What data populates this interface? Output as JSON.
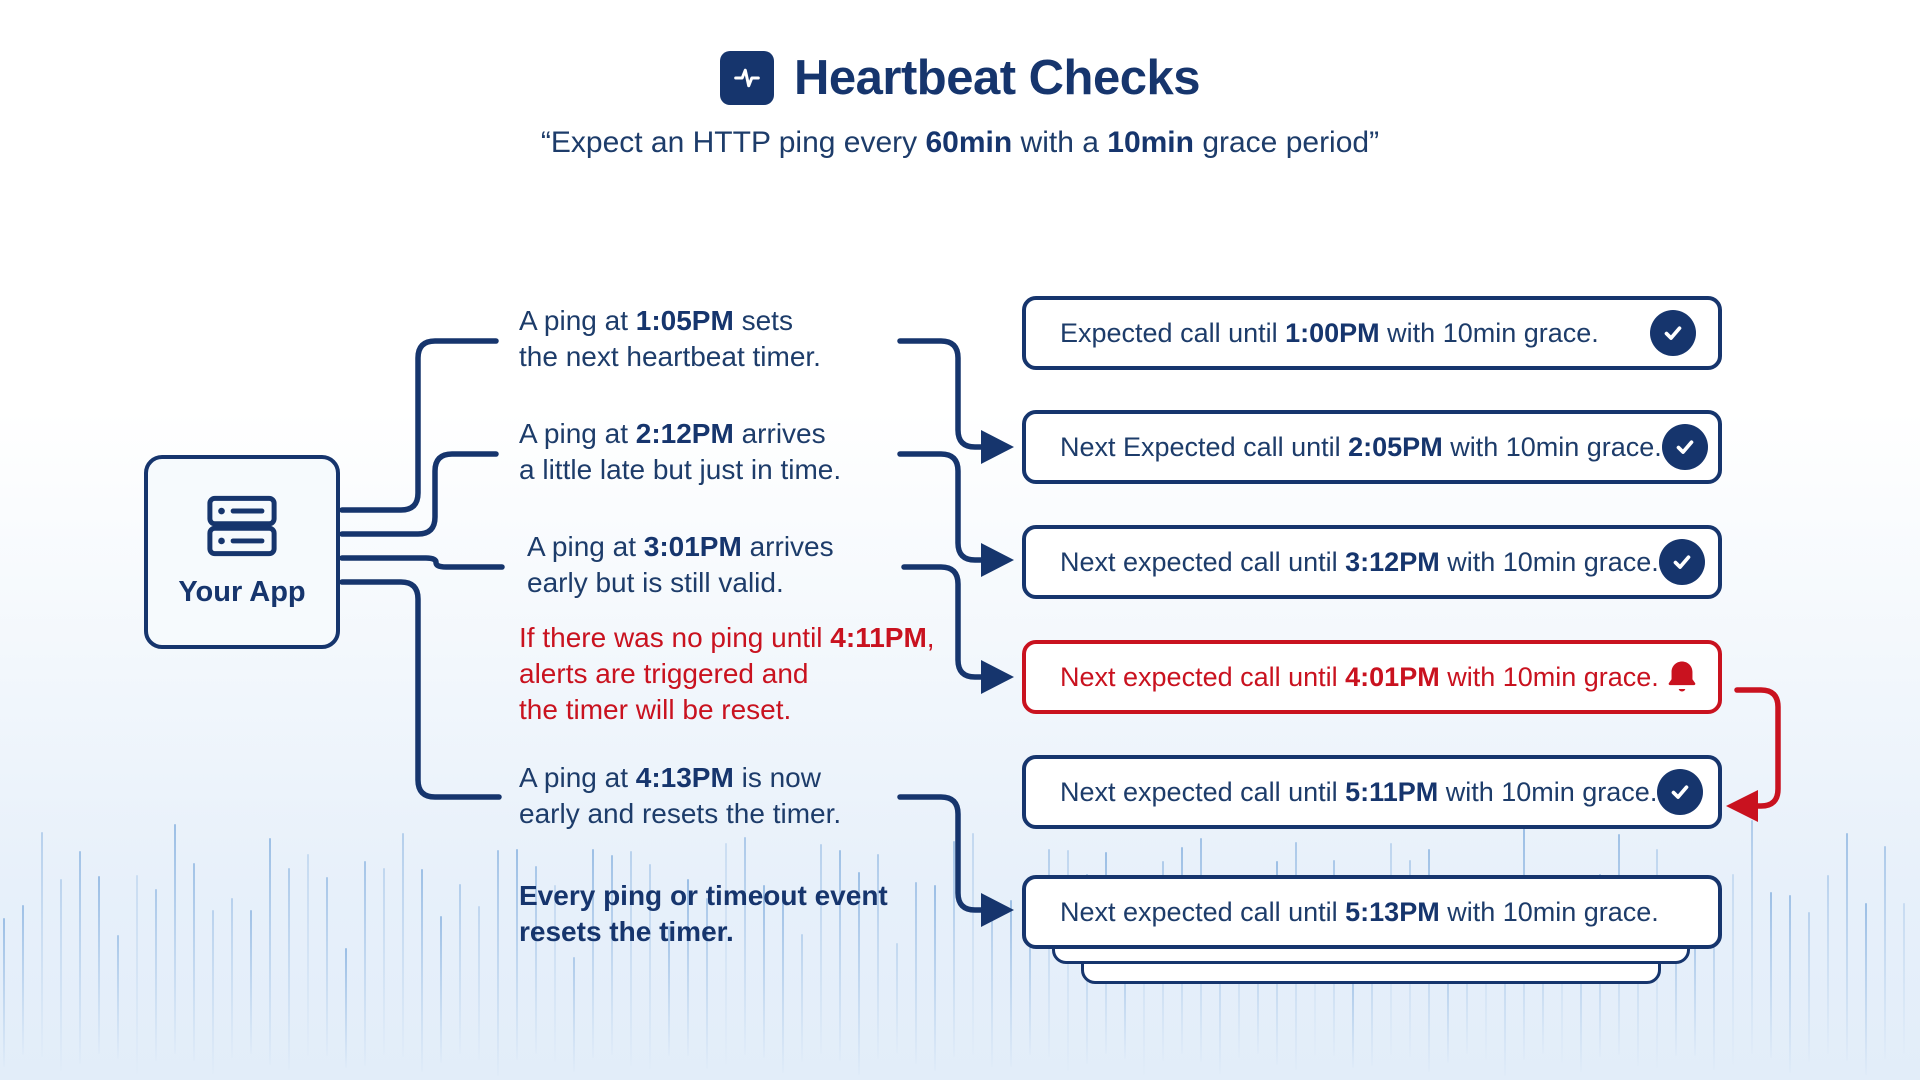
{
  "colors": {
    "navy": "#16356d",
    "navy_soft": "#1d3c6a",
    "red": "#c9121f",
    "app_box_bg": "#f6fafd",
    "wave": "#5f97d4"
  },
  "header": {
    "title": "Heartbeat Checks",
    "subtitle": [
      {
        "t": "“Expect an HTTP ping every "
      },
      {
        "t": "60min",
        "b": true
      },
      {
        "t": " with a "
      },
      {
        "t": "10min",
        "b": true
      },
      {
        "t": " grace period”"
      }
    ]
  },
  "app": {
    "label": "Your App"
  },
  "notes": [
    {
      "lines": [
        [
          {
            "t": "A ping at "
          },
          {
            "t": "1:05PM",
            "b": true
          },
          {
            "t": " sets"
          }
        ],
        [
          {
            "t": "the next heartbeat timer."
          }
        ]
      ]
    },
    {
      "lines": [
        [
          {
            "t": "A ping at "
          },
          {
            "t": "2:12PM",
            "b": true
          },
          {
            "t": " arrives"
          }
        ],
        [
          {
            "t": "a little late but just in time."
          }
        ]
      ]
    },
    {
      "lines": [
        [
          {
            "t": "A ping at "
          },
          {
            "t": "3:01PM",
            "b": true
          },
          {
            "t": " arrives"
          }
        ],
        [
          {
            "t": "early but is still valid."
          }
        ]
      ]
    },
    {
      "lines": [
        [
          {
            "t": "If there was no ping until "
          },
          {
            "t": "4:11PM",
            "b": true
          },
          {
            "t": ","
          }
        ],
        [
          {
            "t": "alerts are triggered and"
          }
        ],
        [
          {
            "t": "the timer will be reset."
          }
        ]
      ]
    },
    {
      "lines": [
        [
          {
            "t": "A ping at "
          },
          {
            "t": "4:13PM",
            "b": true
          },
          {
            "t": " is now"
          }
        ],
        [
          {
            "t": "early and resets the timer."
          }
        ]
      ]
    },
    {
      "lines": [
        [
          {
            "t": "Every ping or timeout event",
            "b": true
          }
        ],
        [
          {
            "t": "resets the timer.",
            "b": true
          }
        ]
      ]
    }
  ],
  "cards": [
    {
      "segments": [
        {
          "t": "Expected call until "
        },
        {
          "t": "1:00PM",
          "b": true
        },
        {
          "t": " with 10min grace."
        }
      ],
      "icon": "check"
    },
    {
      "segments": [
        {
          "t": "Next Expected call until "
        },
        {
          "t": "2:05PM",
          "b": true
        },
        {
          "t": " with 10min grace."
        }
      ],
      "icon": "check"
    },
    {
      "segments": [
        {
          "t": "Next expected call until "
        },
        {
          "t": "3:12PM",
          "b": true
        },
        {
          "t": " with 10min grace."
        }
      ],
      "icon": "check"
    },
    {
      "segments": [
        {
          "t": "Next expected call until "
        },
        {
          "t": "4:01PM",
          "b": true
        },
        {
          "t": " with 10min grace."
        }
      ],
      "icon": "bell"
    },
    {
      "segments": [
        {
          "t": "Next expected call until "
        },
        {
          "t": "5:11PM",
          "b": true
        },
        {
          "t": " with 10min grace."
        }
      ],
      "icon": "check"
    },
    {
      "segments": [
        {
          "t": "Next expected call until "
        },
        {
          "t": "5:13PM",
          "b": true
        },
        {
          "t": " with 10min grace."
        }
      ],
      "icon": "none"
    }
  ]
}
